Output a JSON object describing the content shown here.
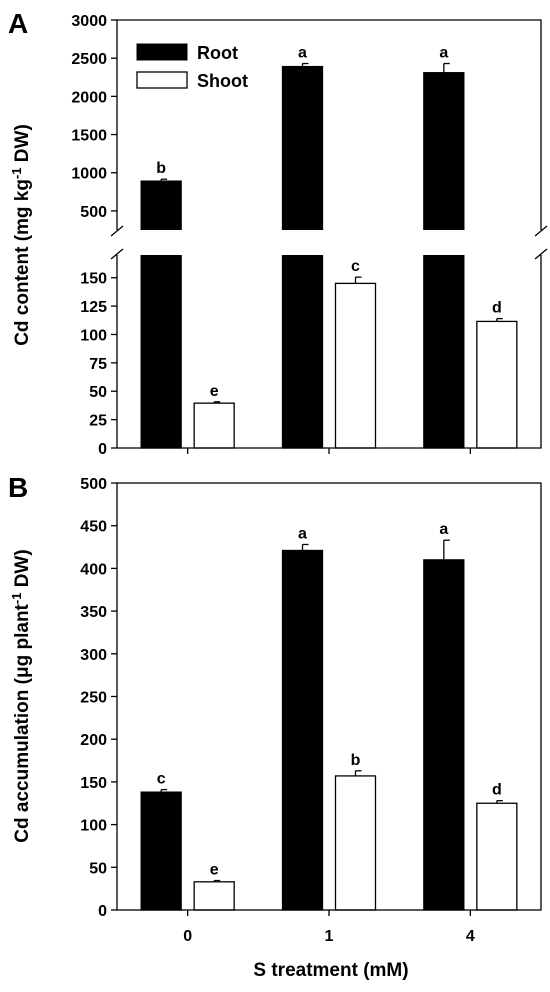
{
  "chart_data": [
    {
      "panel": "A",
      "type": "bar",
      "categories": [
        "0",
        "1",
        "4"
      ],
      "ylabel_main": "Cd content (mg kg",
      "ylabel_sup": "-1",
      "ylabel_tail": " DW)",
      "broken_axis": true,
      "ylim_lower": [
        0,
        170
      ],
      "ylim_upper": [
        250,
        3000
      ],
      "yticks_lower": [
        "0",
        "25",
        "50",
        "75",
        "100",
        "125",
        "150"
      ],
      "yticks_upper": [
        "500",
        "1000",
        "1500",
        "2000",
        "2500",
        "3000"
      ],
      "legend": {
        "position": "top-left",
        "entries": [
          "Root",
          "Shoot"
        ]
      },
      "series": [
        {
          "name": "Root",
          "color": "#000000",
          "values": [
            890,
            2390,
            2310
          ],
          "errors": [
            25,
            40,
            120
          ],
          "letters": [
            "b",
            "a",
            "a"
          ]
        },
        {
          "name": "Shoot",
          "color": "#ffffff",
          "values": [
            39.5,
            145,
            111.5
          ],
          "errors": [
            1.2,
            5.5,
            2.5
          ],
          "letters": [
            "e",
            "c",
            "d"
          ]
        }
      ]
    },
    {
      "panel": "B",
      "type": "bar",
      "categories": [
        "0",
        "1",
        "4"
      ],
      "ylabel_main": "Cd accumulation (μg plant",
      "ylabel_sup": "-1",
      "ylabel_tail": " DW)",
      "ylim": [
        0,
        500
      ],
      "yticks": [
        "0",
        "50",
        "100",
        "150",
        "200",
        "250",
        "300",
        "350",
        "400",
        "450",
        "500"
      ],
      "xlabel": "S treatment (mM)",
      "series": [
        {
          "name": "Root",
          "color": "#000000",
          "values": [
            138,
            421,
            410
          ],
          "errors": [
            3,
            7,
            23
          ],
          "letters": [
            "c",
            "a",
            "a"
          ]
        },
        {
          "name": "Shoot",
          "color": "#ffffff",
          "values": [
            33,
            157,
            125
          ],
          "errors": [
            1.5,
            6,
            3
          ],
          "letters": [
            "e",
            "b",
            "d"
          ]
        }
      ]
    }
  ]
}
